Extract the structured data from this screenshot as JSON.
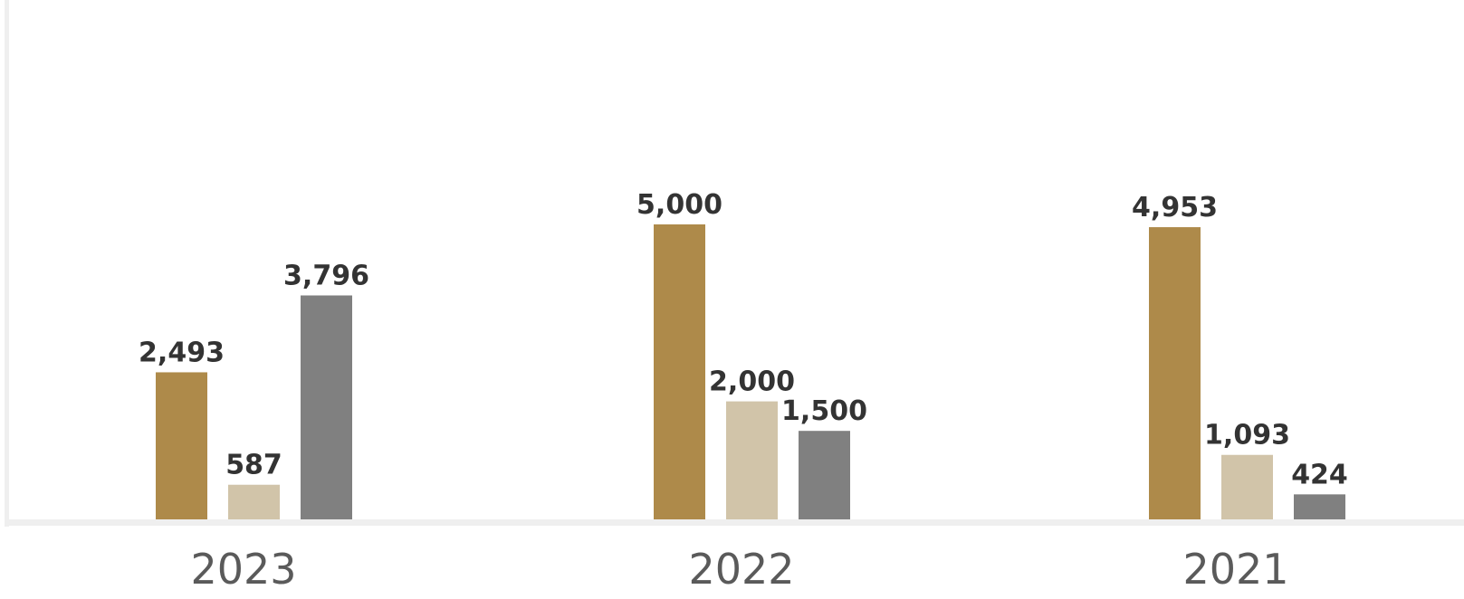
{
  "chart_data": {
    "type": "bar",
    "categories": [
      "2023",
      "2022",
      "2021"
    ],
    "series": [
      {
        "values": [
          2493,
          5000,
          4953
        ],
        "value_labels": [
          "2,493",
          "5,000",
          "4,953"
        ],
        "color": "#ae8a4a"
      },
      {
        "values": [
          587,
          2000,
          1093
        ],
        "value_labels": [
          "587",
          "2,000",
          "1,093"
        ],
        "color": "#d1c4a9"
      },
      {
        "values": [
          3796,
          1500,
          424
        ],
        "value_labels": [
          "3,796",
          "1,500",
          "424"
        ],
        "color": "#808080"
      }
    ],
    "title": "",
    "xlabel": "",
    "ylabel": "",
    "ylim": [
      0,
      7500
    ],
    "grid": false,
    "legend": "none",
    "axis_color": "#efefef"
  }
}
